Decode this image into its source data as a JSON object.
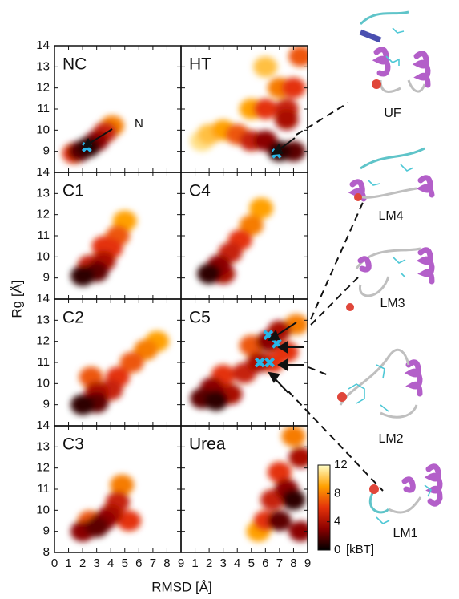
{
  "chart_data": {
    "type": "density",
    "x_label": "RMSD [Å]",
    "y_label": "Rg [Å]",
    "xlim": [
      0,
      9
    ],
    "ylim": [
      8,
      14
    ],
    "col_xticks": [
      [
        0,
        1,
        2,
        3,
        4,
        5,
        6,
        7,
        8,
        9
      ],
      [
        1,
        2,
        3,
        4,
        5,
        6,
        7,
        8,
        9
      ]
    ],
    "row_yticks": [
      [
        9,
        10,
        11,
        12,
        13,
        14
      ],
      [
        9,
        10,
        11,
        12,
        13,
        14
      ],
      [
        9,
        10,
        11,
        12,
        13,
        14
      ],
      [
        8,
        9,
        10,
        11,
        12,
        13,
        14
      ]
    ],
    "colormap": [
      "#000000",
      "#8b0000",
      "#e4320a",
      "#ffa000",
      "#ffffc8"
    ],
    "colorbar": {
      "lim": [
        0,
        12
      ],
      "ticks": [
        0,
        4,
        8,
        12
      ],
      "unit": "[kBT]"
    },
    "marker_color": "#29b6e8",
    "panels": [
      {
        "label": "NC",
        "annotation": "N",
        "blobs": {
          "x": [
            4.1,
            3.6,
            1.4,
            3.0,
            1.8,
            2.4
          ],
          "y": [
            10.2,
            9.9,
            8.9,
            9.5,
            9.0,
            9.2
          ],
          "energy": [
            8,
            5,
            6,
            3,
            2,
            1
          ]
        },
        "markers": {
          "x": [
            2.3
          ],
          "y": [
            9.2
          ]
        }
      },
      {
        "label": "HT",
        "blobs": {
          "x": [
            1.5,
            2,
            6,
            3,
            5,
            7,
            4,
            8.5,
            5,
            8,
            6,
            7.5,
            7.5,
            6,
            8,
            7
          ],
          "y": [
            9.5,
            9.8,
            13,
            10,
            11,
            12,
            9.8,
            13.5,
            9.5,
            12,
            11,
            11,
            10.5,
            9.5,
            9,
            9
          ],
          "energy": [
            11,
            10,
            10,
            9,
            9,
            8,
            7,
            7,
            5,
            6,
            6,
            5,
            4,
            3,
            2,
            1
          ]
        },
        "markers": {
          "x": [
            6.8
          ],
          "y": [
            8.9
          ]
        }
      },
      {
        "label": "C1",
        "blobs": {
          "x": [
            5,
            4.5,
            4,
            3.5,
            2.5,
            3.5,
            3,
            2
          ],
          "y": [
            11.7,
            11,
            10.4,
            10.5,
            9.6,
            9.8,
            9.3,
            9.1
          ],
          "energy": [
            9,
            7,
            6,
            6,
            5,
            4,
            2,
            1
          ]
        }
      },
      {
        "label": "C4",
        "blobs": {
          "x": [
            5.7,
            5,
            4.2,
            3.5,
            3,
            2.7,
            2
          ],
          "y": [
            12.3,
            11.5,
            10.8,
            10.2,
            9.2,
            9.6,
            9.2
          ],
          "energy": [
            9,
            8,
            6,
            5,
            4,
            3,
            1
          ]
        }
      },
      {
        "label": "C2",
        "blobs": {
          "x": [
            7.3,
            6.5,
            5.5,
            2.6,
            4.5,
            4,
            3,
            3,
            2
          ],
          "y": [
            12,
            11.6,
            11,
            10.3,
            10.3,
            9.7,
            9.6,
            9.1,
            9
          ],
          "energy": [
            9,
            8,
            7,
            7,
            6,
            5,
            4,
            2,
            1
          ]
        }
      },
      {
        "label": "C5",
        "blobs": {
          "x": [
            8.2,
            5,
            7.5,
            3,
            6.5,
            4.5,
            7,
            3.5,
            5.5,
            2.2,
            6.2,
            1.5,
            2.5
          ],
          "y": [
            12.8,
            11.8,
            11.5,
            10.4,
            11,
            10.5,
            12.5,
            9.5,
            11,
            9.8,
            12,
            9.3,
            9.2
          ],
          "energy": [
            8,
            7,
            6,
            6,
            6,
            5,
            4,
            4,
            4,
            3,
            3,
            2,
            1
          ]
        },
        "markers": {
          "x": [
            6.2,
            6.8,
            5.6,
            6.3
          ],
          "y": [
            12.3,
            11.9,
            11.0,
            11.0
          ]
        }
      },
      {
        "label": "C3",
        "blobs": {
          "x": [
            4.8,
            2.5,
            5.3,
            4.5,
            4,
            2,
            3.5,
            3
          ],
          "y": [
            11.2,
            9.5,
            9.5,
            10.4,
            9.8,
            9,
            9.5,
            9.2
          ],
          "energy": [
            8,
            7,
            6,
            5,
            4,
            3,
            3,
            2
          ]
        }
      },
      {
        "label": "Urea",
        "blobs": {
          "x": [
            5.5,
            8,
            6,
            7,
            6.5,
            8.5,
            7.5,
            8.5,
            7,
            8
          ],
          "y": [
            9,
            13.5,
            9.5,
            11.8,
            10.5,
            12.5,
            11,
            9,
            9.5,
            10.5
          ],
          "energy": [
            9,
            8,
            6,
            6,
            5,
            4,
            3,
            3,
            2,
            1
          ]
        }
      }
    ]
  },
  "structures": [
    "UF",
    "LM4",
    "LM3",
    "LM2",
    "LM1"
  ]
}
